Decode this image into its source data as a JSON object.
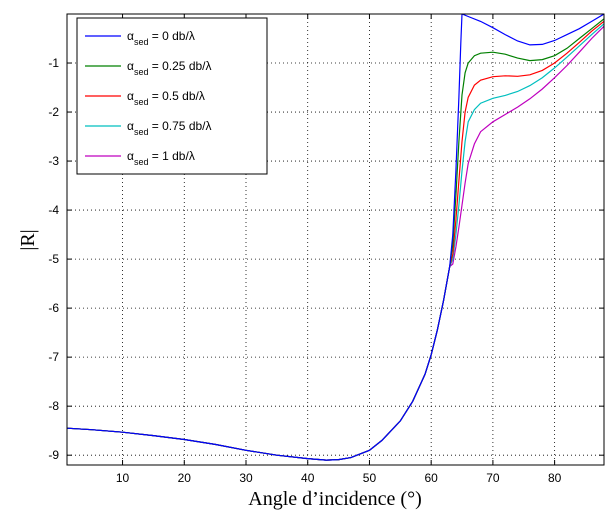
{
  "chart_data": {
    "type": "line",
    "title": "",
    "xlabel": "Angle d’incidence (°)",
    "ylabel": "|R|",
    "xlim": [
      1,
      88
    ],
    "ylim": [
      -9.2,
      0
    ],
    "xticks": [
      10,
      20,
      30,
      40,
      50,
      60,
      70,
      80
    ],
    "yticks": [
      -1,
      -2,
      -3,
      -4,
      -5,
      -6,
      -7,
      -8,
      -9
    ],
    "grid": true,
    "legend_position": "top-left",
    "colors": [
      "#0000ff",
      "#008000",
      "#ff0000",
      "#00bfbf",
      "#bf00bf"
    ],
    "shared_x": [
      1,
      5,
      10,
      15,
      20,
      25,
      30,
      35,
      40,
      43,
      45,
      47,
      50,
      52,
      55,
      57,
      59,
      60,
      61,
      62,
      63
    ],
    "shared_y": [
      -8.45,
      -8.48,
      -8.53,
      -8.6,
      -8.68,
      -8.78,
      -8.9,
      -9.0,
      -9.07,
      -9.1,
      -9.09,
      -9.05,
      -8.9,
      -8.7,
      -8.3,
      -7.9,
      -7.35,
      -6.95,
      -6.45,
      -5.85,
      -5.15
    ],
    "series": [
      {
        "name_prefix": "α",
        "name_sub": "sed",
        "name_suffix": " = 0 db/λ",
        "x": [
          63.5,
          64,
          64.5,
          64.8,
          65,
          66,
          68,
          70,
          72,
          74,
          76,
          78,
          80,
          82,
          84,
          86,
          88
        ],
        "y": [
          -4.5,
          -3.2,
          -1.7,
          -0.6,
          0,
          -0.05,
          -0.15,
          -0.28,
          -0.42,
          -0.55,
          -0.63,
          -0.62,
          -0.54,
          -0.42,
          -0.3,
          -0.15,
          0.0
        ]
      },
      {
        "name_prefix": "α",
        "name_sub": "sed",
        "name_suffix": " = 0.25 db/λ",
        "x": [
          63.5,
          64,
          64.5,
          65,
          65.5,
          66,
          67,
          68,
          70,
          72,
          74,
          76,
          78,
          80,
          82,
          84,
          86,
          88
        ],
        "y": [
          -4.7,
          -3.7,
          -2.6,
          -1.65,
          -1.2,
          -1.0,
          -0.85,
          -0.8,
          -0.78,
          -0.82,
          -0.9,
          -0.95,
          -0.93,
          -0.85,
          -0.7,
          -0.5,
          -0.3,
          -0.1
        ]
      },
      {
        "name_prefix": "α",
        "name_sub": "sed",
        "name_suffix": " = 0.5 db/λ",
        "x": [
          63.5,
          64,
          64.5,
          65,
          65.5,
          66,
          67,
          68,
          70,
          72,
          74,
          76,
          78,
          80,
          82,
          84,
          86,
          88
        ],
        "y": [
          -4.9,
          -4.2,
          -3.4,
          -2.6,
          -2.0,
          -1.7,
          -1.45,
          -1.35,
          -1.28,
          -1.26,
          -1.27,
          -1.24,
          -1.15,
          -1.0,
          -0.8,
          -0.58,
          -0.35,
          -0.15
        ]
      },
      {
        "name_prefix": "α",
        "name_sub": "sed",
        "name_suffix": " = 0.75 db/λ",
        "x": [
          63.5,
          64,
          64.5,
          65,
          65.5,
          66,
          67,
          68,
          70,
          72,
          74,
          76,
          78,
          80,
          82,
          84,
          86,
          88
        ],
        "y": [
          -5.0,
          -4.5,
          -3.9,
          -3.2,
          -2.6,
          -2.2,
          -1.95,
          -1.82,
          -1.72,
          -1.66,
          -1.58,
          -1.46,
          -1.3,
          -1.1,
          -0.88,
          -0.65,
          -0.42,
          -0.2
        ]
      },
      {
        "name_prefix": "α",
        "name_sub": "sed",
        "name_suffix": " = 1 db/λ",
        "x": [
          63.5,
          64,
          64.5,
          65,
          65.5,
          66,
          67,
          68,
          70,
          72,
          74,
          76,
          78,
          80,
          82,
          84,
          86,
          88
        ],
        "y": [
          -5.1,
          -4.75,
          -4.35,
          -3.9,
          -3.45,
          -3.05,
          -2.65,
          -2.4,
          -2.2,
          -2.05,
          -1.9,
          -1.73,
          -1.53,
          -1.3,
          -1.05,
          -0.78,
          -0.5,
          -0.25
        ]
      }
    ]
  }
}
